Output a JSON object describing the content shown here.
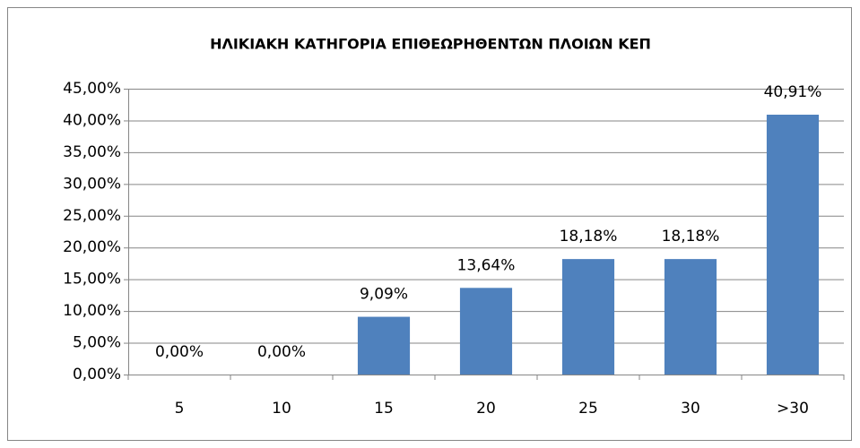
{
  "chart_data": {
    "type": "bar",
    "title": "ΗΛΙΚΙΑΚΗ ΚΑΤΗΓΟΡΙΑ ΕΠΙΘΕΩΡΗΘΕΝΤΩΝ ΠΛΟΙΩΝ ΚΕΠ",
    "categories": [
      "5",
      "10",
      "15",
      "20",
      "25",
      "30",
      ">30"
    ],
    "values": [
      0,
      0,
      9.09,
      13.64,
      18.18,
      18.18,
      40.91
    ],
    "value_labels": [
      "0,00%",
      "0,00%",
      "9,09%",
      "13,64%",
      "18,18%",
      "18,18%",
      "40,91%"
    ],
    "color": "#4f81bd",
    "ylim": [
      0,
      45
    ],
    "yticks": [
      {
        "value": 0,
        "label": "0,00%"
      },
      {
        "value": 5,
        "label": "5,00%"
      },
      {
        "value": 10,
        "label": "10,00%"
      },
      {
        "value": 15,
        "label": "15,00%"
      },
      {
        "value": 20,
        "label": "20,00%"
      },
      {
        "value": 25,
        "label": "25,00%"
      },
      {
        "value": 30,
        "label": "30,00%"
      },
      {
        "value": 35,
        "label": "35,00%"
      },
      {
        "value": 40,
        "label": "40,00%"
      },
      {
        "value": 45,
        "label": "45,00%"
      }
    ],
    "grid": true
  }
}
